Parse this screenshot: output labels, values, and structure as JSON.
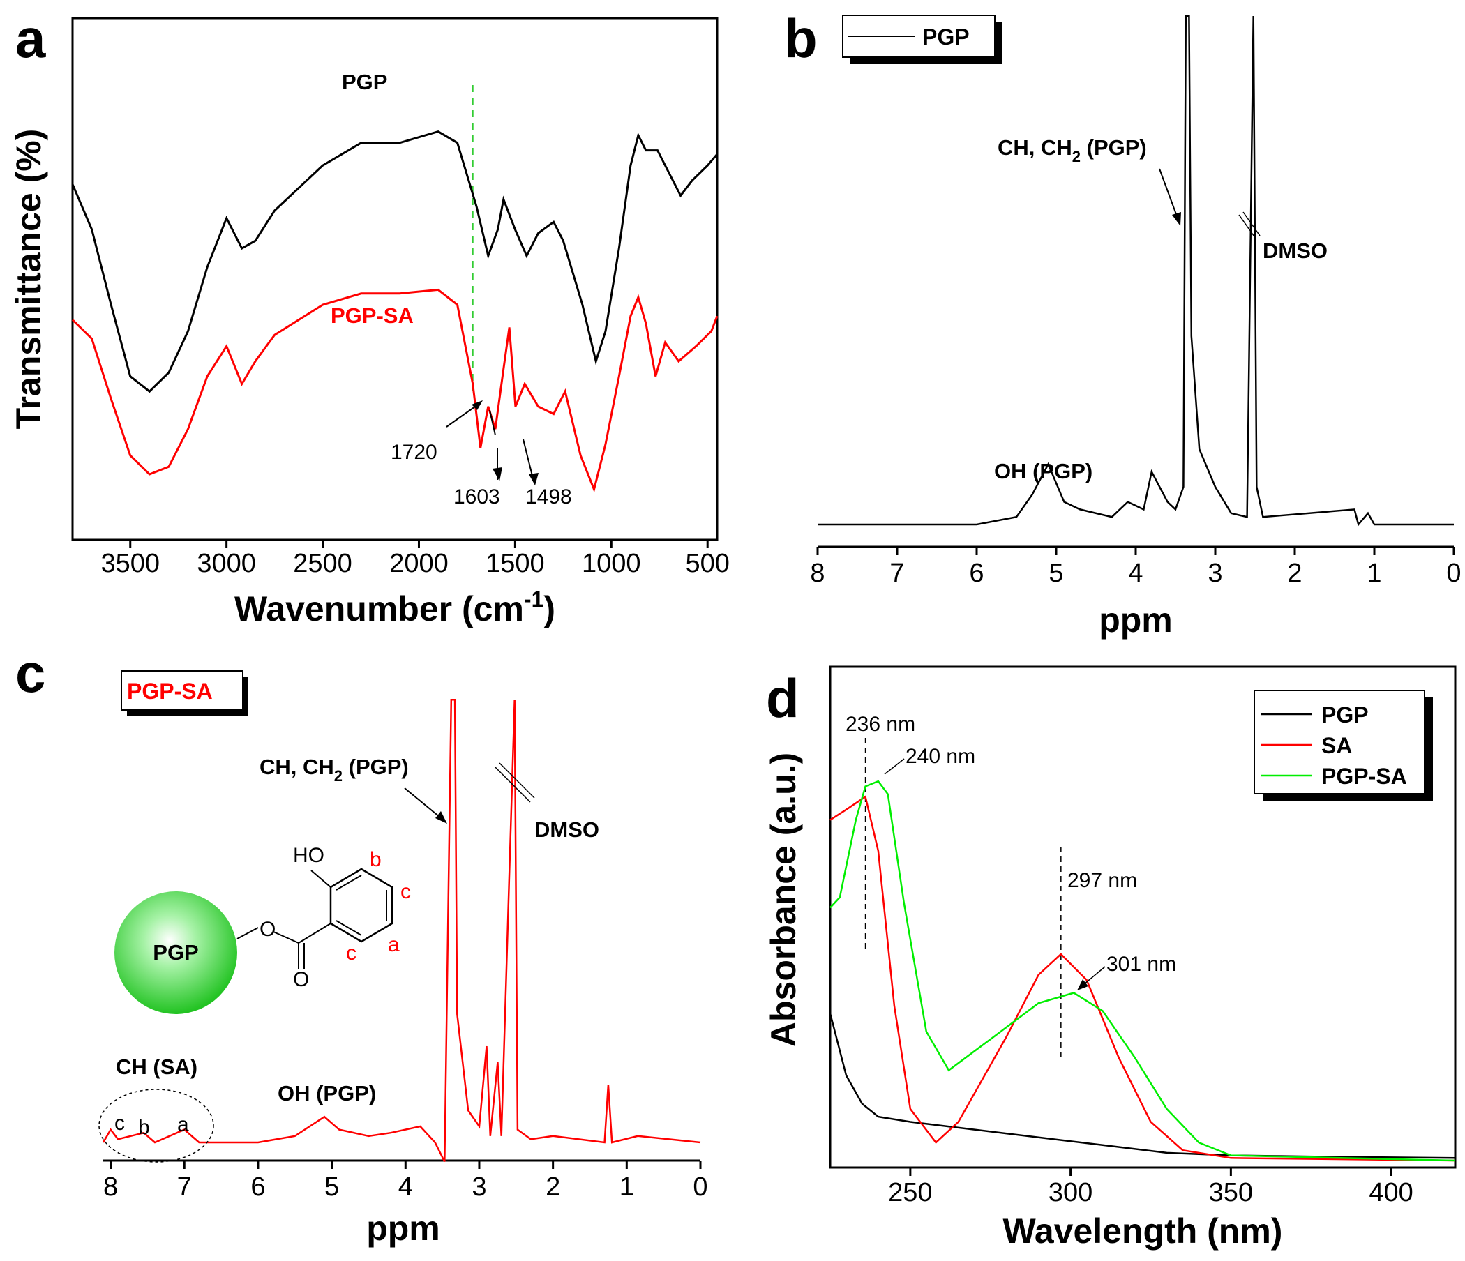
{
  "figure": {
    "panel_letters": [
      "a",
      "b",
      "c",
      "d"
    ]
  },
  "chart_data": [
    {
      "panel": "a",
      "type": "line",
      "xlabel": "Wavenumber (cm",
      "xlabel_sup": "-1",
      "xlabel_close": ")",
      "ylabel": "Transmittance (%)",
      "xlim": [
        3800,
        450
      ],
      "reversed_x": true,
      "xticks": [
        "3500",
        "3000",
        "2500",
        "2000",
        "1500",
        "1000",
        "500"
      ],
      "xtick_values": [
        3500,
        3000,
        2500,
        2000,
        1500,
        1000,
        500
      ],
      "series": [
        {
          "name": "PGP",
          "color": "#000000",
          "points": [
            [
              3800,
              0.23
            ],
            [
              3700,
              0.35
            ],
            [
              3600,
              0.55
            ],
            [
              3500,
              0.74
            ],
            [
              3400,
              0.78
            ],
            [
              3300,
              0.73
            ],
            [
              3200,
              0.62
            ],
            [
              3100,
              0.45
            ],
            [
              3000,
              0.32
            ],
            [
              2920,
              0.4
            ],
            [
              2850,
              0.38
            ],
            [
              2750,
              0.3
            ],
            [
              2500,
              0.18
            ],
            [
              2300,
              0.12
            ],
            [
              2100,
              0.12
            ],
            [
              1900,
              0.09
            ],
            [
              1800,
              0.12
            ],
            [
              1700,
              0.29
            ],
            [
              1640,
              0.42
            ],
            [
              1590,
              0.35
            ],
            [
              1560,
              0.27
            ],
            [
              1500,
              0.35
            ],
            [
              1440,
              0.42
            ],
            [
              1380,
              0.36
            ],
            [
              1300,
              0.33
            ],
            [
              1250,
              0.38
            ],
            [
              1150,
              0.55
            ],
            [
              1080,
              0.7
            ],
            [
              1030,
              0.62
            ],
            [
              960,
              0.4
            ],
            [
              900,
              0.18
            ],
            [
              860,
              0.1
            ],
            [
              820,
              0.14
            ],
            [
              760,
              0.14
            ],
            [
              700,
              0.2
            ],
            [
              640,
              0.26
            ],
            [
              580,
              0.22
            ],
            [
              500,
              0.18
            ],
            [
              450,
              0.15
            ]
          ]
        },
        {
          "name": "PGP-SA",
          "color": "#ff0000",
          "points": [
            [
              3800,
              0.59
            ],
            [
              3700,
              0.64
            ],
            [
              3600,
              0.8
            ],
            [
              3500,
              0.95
            ],
            [
              3400,
              1.0
            ],
            [
              3300,
              0.98
            ],
            [
              3200,
              0.88
            ],
            [
              3100,
              0.74
            ],
            [
              3000,
              0.66
            ],
            [
              2920,
              0.76
            ],
            [
              2850,
              0.7
            ],
            [
              2750,
              0.63
            ],
            [
              2500,
              0.55
            ],
            [
              2300,
              0.52
            ],
            [
              2100,
              0.52
            ],
            [
              1900,
              0.51
            ],
            [
              1800,
              0.55
            ],
            [
              1720,
              0.76
            ],
            [
              1680,
              0.93
            ],
            [
              1640,
              0.82
            ],
            [
              1603,
              0.88
            ],
            [
              1560,
              0.72
            ],
            [
              1530,
              0.61
            ],
            [
              1498,
              0.82
            ],
            [
              1450,
              0.76
            ],
            [
              1380,
              0.82
            ],
            [
              1300,
              0.84
            ],
            [
              1240,
              0.78
            ],
            [
              1160,
              0.95
            ],
            [
              1090,
              1.04
            ],
            [
              1030,
              0.92
            ],
            [
              960,
              0.74
            ],
            [
              900,
              0.58
            ],
            [
              860,
              0.53
            ],
            [
              820,
              0.6
            ],
            [
              770,
              0.74
            ],
            [
              720,
              0.65
            ],
            [
              650,
              0.7
            ],
            [
              560,
              0.66
            ],
            [
              480,
              0.62
            ],
            [
              450,
              0.58
            ]
          ]
        }
      ],
      "annotations": [
        {
          "text": "1720",
          "x": 1720
        },
        {
          "text": "1603",
          "x": 1603
        },
        {
          "text": "1498",
          "x": 1498
        }
      ],
      "reference_line": {
        "x": 1720,
        "color": "#33cc33",
        "style": "dashed"
      }
    },
    {
      "panel": "b",
      "type": "line",
      "xlabel": "ppm",
      "xlim": [
        8,
        0
      ],
      "reversed_x": true,
      "xticks": [
        "8",
        "7",
        "6",
        "5",
        "4",
        "3",
        "2",
        "1",
        "0"
      ],
      "xtick_values": [
        8,
        7,
        6,
        5,
        4,
        3,
        2,
        1,
        0
      ],
      "legend": {
        "entries": [
          "PGP"
        ],
        "placement": "top-left"
      },
      "series": [
        {
          "name": "PGP",
          "color": "#000000",
          "points": [
            [
              8.0,
              0.0
            ],
            [
              6.0,
              0.0
            ],
            [
              5.5,
              0.02
            ],
            [
              5.3,
              0.08
            ],
            [
              5.1,
              0.16
            ],
            [
              4.9,
              0.06
            ],
            [
              4.7,
              0.04
            ],
            [
              4.3,
              0.02
            ],
            [
              4.1,
              0.06
            ],
            [
              3.9,
              0.04
            ],
            [
              3.8,
              0.14
            ],
            [
              3.6,
              0.06
            ],
            [
              3.5,
              0.04
            ],
            [
              3.4,
              0.1
            ],
            [
              3.37,
              1.35
            ],
            [
              3.33,
              1.35
            ],
            [
              3.3,
              0.5
            ],
            [
              3.2,
              0.2
            ],
            [
              3.0,
              0.1
            ],
            [
              2.8,
              0.03
            ],
            [
              2.6,
              0.02
            ],
            [
              2.52,
              1.35
            ],
            [
              2.48,
              0.1
            ],
            [
              2.4,
              0.02
            ],
            [
              1.25,
              0.04
            ],
            [
              1.2,
              0.0
            ],
            [
              1.08,
              0.03
            ],
            [
              1.0,
              0.0
            ],
            [
              0.0,
              0.0
            ]
          ]
        }
      ],
      "annotations": [
        {
          "text": "CH, CH",
          "sub": "2",
          "rest": " (PGP)"
        },
        {
          "text": "DMSO"
        },
        {
          "text": "OH (PGP)"
        }
      ]
    },
    {
      "panel": "c",
      "type": "line",
      "xlabel": "ppm",
      "xlim": [
        8.1,
        0
      ],
      "reversed_x": true,
      "xticks": [
        "8",
        "7",
        "6",
        "5",
        "4",
        "3",
        "2",
        "1",
        "0"
      ],
      "xtick_values": [
        8,
        7,
        6,
        5,
        4,
        3,
        2,
        1,
        0
      ],
      "legend": {
        "entries": [
          "PGP-SA"
        ],
        "placement": "top-left"
      },
      "series": [
        {
          "name": "PGP-SA",
          "color": "#ff0000",
          "points": [
            [
              8.1,
              0.0
            ],
            [
              8.0,
              0.04
            ],
            [
              7.9,
              0.01
            ],
            [
              7.55,
              0.03
            ],
            [
              7.4,
              0.0
            ],
            [
              7.0,
              0.04
            ],
            [
              6.8,
              0.0
            ],
            [
              6.0,
              0.0
            ],
            [
              5.5,
              0.02
            ],
            [
              5.3,
              0.05
            ],
            [
              5.1,
              0.08
            ],
            [
              4.9,
              0.04
            ],
            [
              4.5,
              0.02
            ],
            [
              4.2,
              0.03
            ],
            [
              3.8,
              0.05
            ],
            [
              3.6,
              0.0
            ],
            [
              3.47,
              -0.06
            ],
            [
              3.38,
              1.38
            ],
            [
              3.33,
              1.38
            ],
            [
              3.3,
              0.4
            ],
            [
              3.15,
              0.1
            ],
            [
              3.0,
              0.05
            ],
            [
              2.9,
              0.3
            ],
            [
              2.85,
              0.02
            ],
            [
              2.75,
              0.25
            ],
            [
              2.7,
              0.02
            ],
            [
              2.52,
              1.38
            ],
            [
              2.48,
              0.04
            ],
            [
              2.3,
              0.01
            ],
            [
              2.0,
              0.02
            ],
            [
              1.3,
              0.0
            ],
            [
              1.25,
              0.18
            ],
            [
              1.2,
              0.0
            ],
            [
              0.85,
              0.02
            ],
            [
              0.0,
              0.0
            ]
          ]
        }
      ],
      "annotations": [
        {
          "text": "CH, CH",
          "sub": "2",
          "rest": " (PGP)"
        },
        {
          "text": "DMSO"
        },
        {
          "text": "OH (PGP)"
        },
        {
          "text": "CH (SA)"
        },
        {
          "text": "c"
        },
        {
          "text": "b"
        },
        {
          "text": "a"
        }
      ],
      "structure_labels": {
        "sphere": "PGP",
        "hydroxyl": "HO",
        "ester_o": "O",
        "carbonyl_o": "O",
        "ring_b": "b",
        "ring_c_top": "c",
        "ring_c_bottom": "c",
        "ring_a": "a"
      }
    },
    {
      "panel": "d",
      "type": "line",
      "xlabel": "Wavelength (nm)",
      "ylabel": "Absorbance (a.u.)",
      "xlim": [
        225,
        420
      ],
      "xticks": [
        "250",
        "300",
        "350",
        "400"
      ],
      "xtick_values": [
        250,
        300,
        350,
        400
      ],
      "legend": {
        "entries": [
          "PGP",
          "SA",
          "PGP-SA"
        ],
        "placement": "top-right"
      },
      "series": [
        {
          "name": "PGP",
          "color": "#000000",
          "points": [
            [
              225,
              0.57
            ],
            [
              230,
              0.33
            ],
            [
              235,
              0.22
            ],
            [
              240,
              0.17
            ],
            [
              250,
              0.15
            ],
            [
              270,
              0.12
            ],
            [
              290,
              0.09
            ],
            [
              310,
              0.06
            ],
            [
              330,
              0.03
            ],
            [
              350,
              0.02
            ],
            [
              380,
              0.015
            ],
            [
              420,
              0.01
            ]
          ]
        },
        {
          "name": "SA",
          "color": "#ff0000",
          "points": [
            [
              225,
              1.32
            ],
            [
              230,
              1.36
            ],
            [
              236,
              1.41
            ],
            [
              240,
              1.2
            ],
            [
              245,
              0.6
            ],
            [
              250,
              0.2
            ],
            [
              258,
              0.07
            ],
            [
              265,
              0.15
            ],
            [
              280,
              0.48
            ],
            [
              290,
              0.72
            ],
            [
              297,
              0.8
            ],
            [
              305,
              0.7
            ],
            [
              315,
              0.4
            ],
            [
              325,
              0.15
            ],
            [
              335,
              0.04
            ],
            [
              350,
              0.01
            ],
            [
              420,
              0.0
            ]
          ]
        },
        {
          "name": "PGP-SA",
          "color": "#00ee00",
          "points": [
            [
              225,
              0.98
            ],
            [
              228,
              1.02
            ],
            [
              233,
              1.32
            ],
            [
              236,
              1.45
            ],
            [
              240,
              1.47
            ],
            [
              243,
              1.42
            ],
            [
              248,
              1.0
            ],
            [
              255,
              0.5
            ],
            [
              262,
              0.35
            ],
            [
              275,
              0.47
            ],
            [
              290,
              0.61
            ],
            [
              301,
              0.65
            ],
            [
              310,
              0.58
            ],
            [
              320,
              0.4
            ],
            [
              330,
              0.2
            ],
            [
              340,
              0.07
            ],
            [
              350,
              0.02
            ],
            [
              420,
              0.0
            ]
          ]
        }
      ],
      "annotations": [
        {
          "text": "236 nm",
          "x": 236
        },
        {
          "text": "240 nm",
          "x": 240
        },
        {
          "text": "297 nm",
          "x": 297
        },
        {
          "text": "301 nm",
          "x": 301
        }
      ]
    }
  ]
}
